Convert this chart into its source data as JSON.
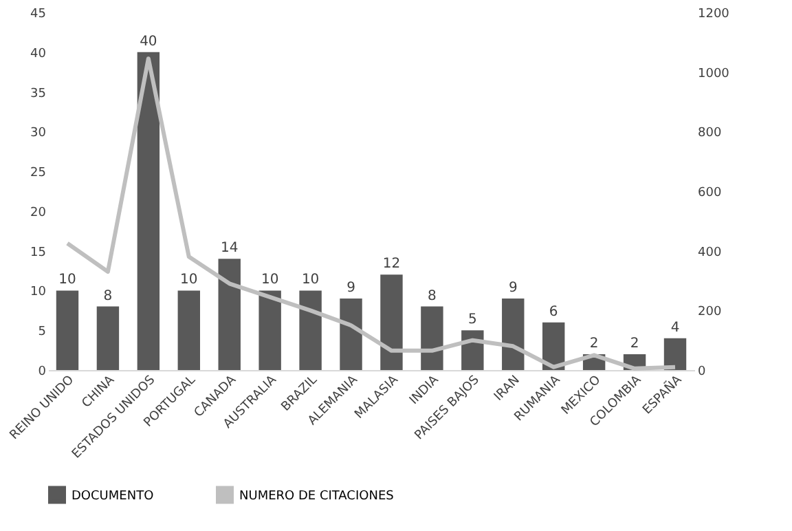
{
  "chart_data": {
    "type": "bar",
    "categories": [
      "REINO UNIDO",
      "CHINA",
      "ESTADOS UNIDOS",
      "PORTUGAL",
      "CANADA",
      "AUSTRALIA",
      "BRAZIL",
      "ALEMANIA",
      "MALASIA",
      "INDIA",
      "PAISES BAJOS",
      "IRAN",
      "RUMANIA",
      "MEXICO",
      "COLOMBIA",
      "ESPAÑA"
    ],
    "series": [
      {
        "name": "DOCUMENTO",
        "color": "#595959",
        "values": [
          10,
          8,
          40,
          10,
          14,
          10,
          10,
          9,
          12,
          8,
          5,
          9,
          6,
          2,
          2,
          4
        ],
        "value_labels": [
          "10",
          "8",
          "40",
          "10",
          "14",
          "10",
          "10",
          "9",
          "12",
          "8",
          "5",
          "9",
          "6",
          "2",
          "2",
          "4"
        ]
      },
      {
        "name": "NUMERO DE CITACIONES",
        "type": "line",
        "axis": "y2",
        "color": "#bfbfbf",
        "values": [
          425,
          330,
          1045,
          380,
          290,
          245,
          200,
          150,
          65,
          65,
          100,
          80,
          10,
          50,
          5,
          10
        ]
      }
    ],
    "ylim": [
      0,
      45
    ],
    "yticks": [
      0,
      5,
      10,
      15,
      20,
      25,
      30,
      35,
      40,
      45
    ],
    "y2lim": [
      0,
      1200
    ],
    "y2ticks": [
      0,
      200,
      400,
      600,
      800,
      1000,
      1200
    ],
    "grid": false,
    "legend": "bottom",
    "marker": "none",
    "line_style": "solid"
  }
}
